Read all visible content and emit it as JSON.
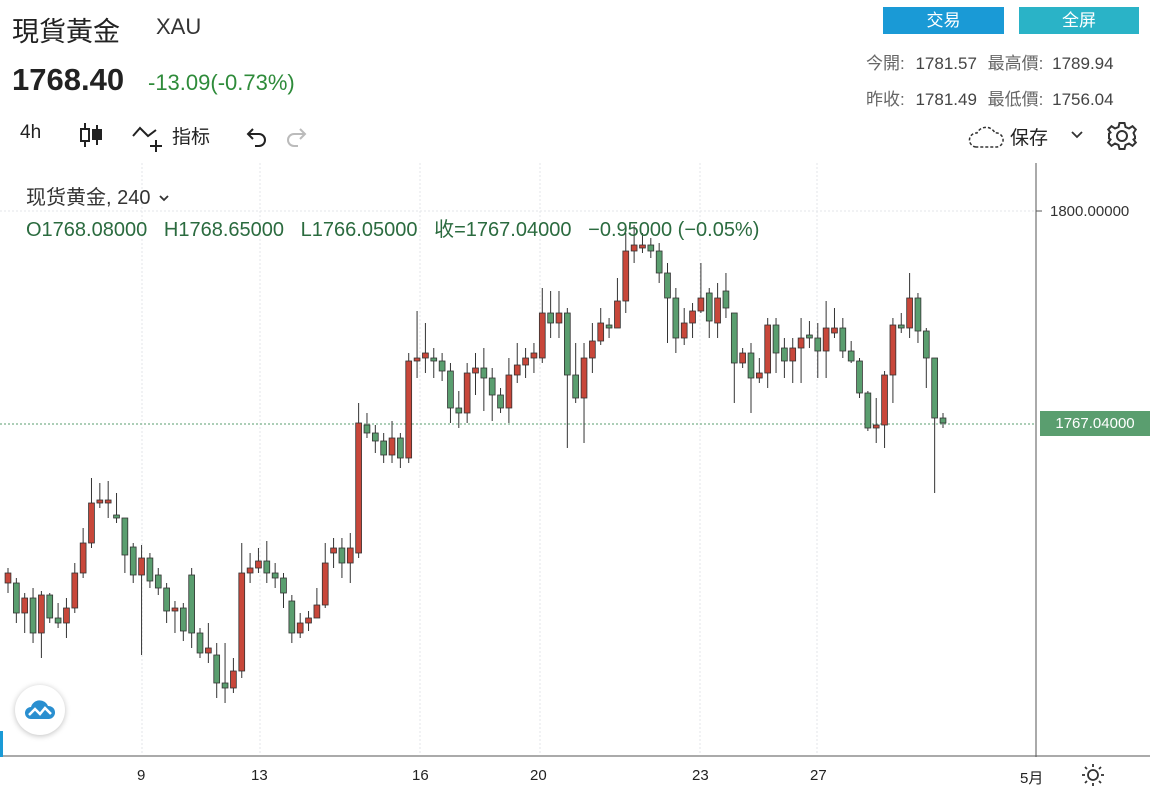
{
  "header": {
    "title": "現貨黃金",
    "symbol": "XAU",
    "price": "1768.40",
    "change": "-13.09(-0.73%)",
    "trade_label": "交易",
    "fullscreen_label": "全屏"
  },
  "stats": {
    "open_label": "今開:",
    "open_value": "1781.57",
    "high_label": "最高價:",
    "high_value": "1789.94",
    "prev_close_label": "昨收:",
    "prev_close_value": "1781.49",
    "low_label": "最低價:",
    "low_value": "1756.04"
  },
  "toolbar": {
    "interval": "4h",
    "indicators_label": "指标",
    "save_label": "保存"
  },
  "legend": {
    "name": "现货黄金",
    "interval": "240",
    "ohlc": "O1768.08000   H1768.65000   L1766.05000   收=1767.04000   −0.95000 (−0.05%)"
  },
  "axis": {
    "price_tick": "1800.00000",
    "last_price": "1767.04000",
    "x_labels": [
      "9",
      "13",
      "16",
      "20",
      "23",
      "27",
      "5月"
    ]
  },
  "colors": {
    "up": "#c8473a",
    "down": "#5a9e6f",
    "accent": "#1a9ad6"
  }
}
